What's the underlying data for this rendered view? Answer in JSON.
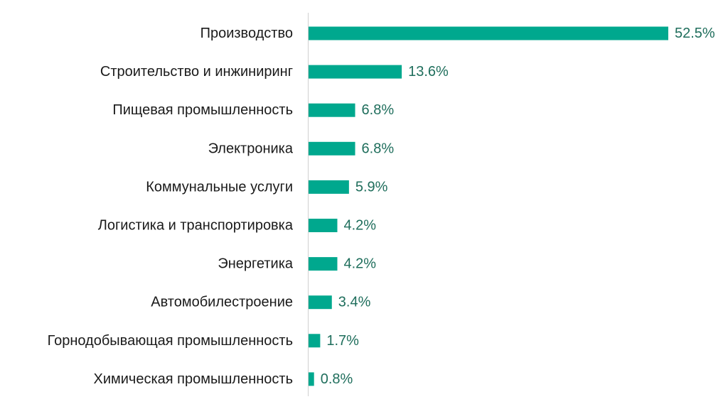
{
  "chart_data": {
    "type": "bar",
    "orientation": "horizontal",
    "title": "",
    "xlabel": "",
    "ylabel": "",
    "categories": [
      "Производство",
      "Строительство и инжиниринг",
      "Пищевая промышленность",
      "Электроника",
      "Коммунальные услуги",
      "Логистика и транспортировка",
      "Энергетика",
      "Автомобилестроение",
      "Горнодобывающая промышленность",
      "Химическая промышленность"
    ],
    "values": [
      52.5,
      13.6,
      6.8,
      6.8,
      5.9,
      4.2,
      4.2,
      3.4,
      1.7,
      0.8
    ],
    "value_labels": [
      "52.5%",
      "13.6%",
      "6.8%",
      "6.8%",
      "5.9%",
      "4.2%",
      "4.2%",
      "3.4%",
      "1.7%",
      "0.8%"
    ],
    "xlim": [
      0,
      52.5
    ],
    "grid": false,
    "legend": "none",
    "colors": {
      "bar": "#00A88E",
      "value_label": "#1F6E5C",
      "category_label": "#1a1a1a",
      "axis": "#d0d0d0"
    }
  }
}
